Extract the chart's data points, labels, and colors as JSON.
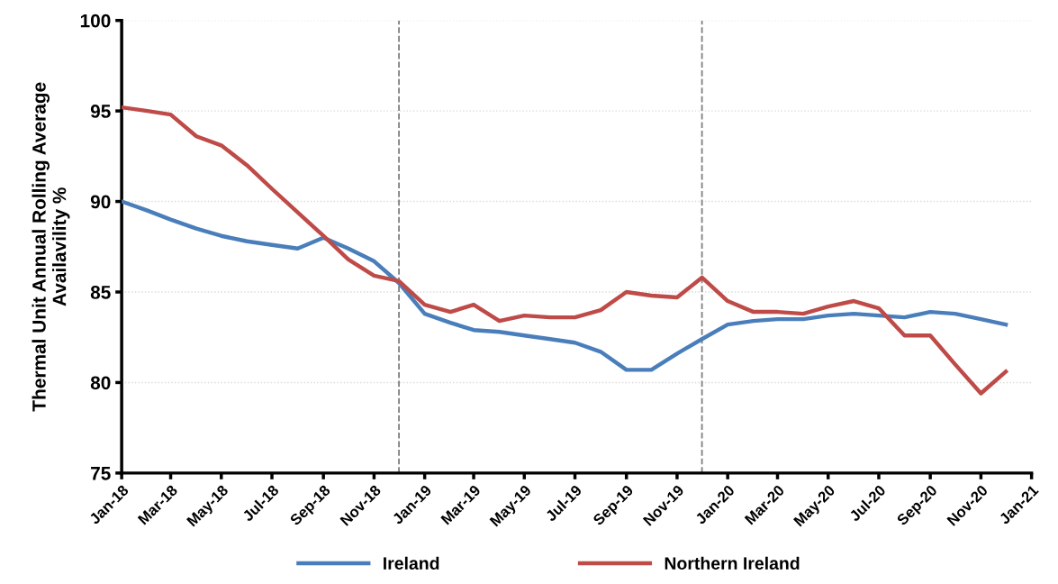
{
  "chart_data": {
    "type": "line",
    "ylabel": "Thermal Unit Annual Rolling Average\nAvailavility %",
    "x": [
      "2018-01",
      "2018-02",
      "2018-03",
      "2018-04",
      "2018-05",
      "2018-06",
      "2018-07",
      "2018-08",
      "2018-09",
      "2018-10",
      "2018-11",
      "2018-12",
      "2019-01",
      "2019-02",
      "2019-03",
      "2019-04",
      "2019-05",
      "2019-06",
      "2019-07",
      "2019-08",
      "2019-09",
      "2019-10",
      "2019-11",
      "2019-12",
      "2020-01",
      "2020-02",
      "2020-03",
      "2020-04",
      "2020-05",
      "2020-06",
      "2020-07",
      "2020-08",
      "2020-09",
      "2020-10",
      "2020-11",
      "2020-12"
    ],
    "series": [
      {
        "name": "Ireland",
        "color": "#4a7ebb",
        "values": [
          90.0,
          89.5,
          89.0,
          88.5,
          88.1,
          87.8,
          87.6,
          87.4,
          88.0,
          87.4,
          86.7,
          85.5,
          83.8,
          83.3,
          82.9,
          82.8,
          82.6,
          82.4,
          82.2,
          81.7,
          80.7,
          80.7,
          81.6,
          82.4,
          83.2,
          83.4,
          83.5,
          83.5,
          83.7,
          83.8,
          83.7,
          83.6,
          83.9,
          83.8,
          83.5,
          83.2
        ]
      },
      {
        "name": "Northern Ireland",
        "color": "#be4b48",
        "values": [
          95.2,
          95.0,
          94.8,
          93.6,
          93.1,
          92.0,
          90.7,
          89.4,
          88.1,
          86.8,
          85.9,
          85.6,
          84.3,
          83.9,
          84.3,
          83.4,
          83.7,
          83.6,
          83.6,
          84.0,
          85.0,
          84.8,
          84.7,
          85.8,
          84.5,
          83.9,
          83.9,
          83.8,
          84.2,
          84.5,
          84.1,
          82.6,
          82.6,
          81.0,
          79.4,
          80.6
        ]
      }
    ],
    "xlim": [
      "2018-01-01",
      "2021-01-01"
    ],
    "xticks": [
      {
        "value": "2018-01",
        "label": "Jan-18"
      },
      {
        "value": "2018-03",
        "label": "Mar-18"
      },
      {
        "value": "2018-05",
        "label": "May-18"
      },
      {
        "value": "2018-07",
        "label": "Jul-18"
      },
      {
        "value": "2018-09",
        "label": "Sep-18"
      },
      {
        "value": "2018-11",
        "label": "Nov-18"
      },
      {
        "value": "2019-01",
        "label": "Jan-19"
      },
      {
        "value": "2019-03",
        "label": "Mar-19"
      },
      {
        "value": "2019-05",
        "label": "May-19"
      },
      {
        "value": "2019-07",
        "label": "Jul-19"
      },
      {
        "value": "2019-09",
        "label": "Sep-19"
      },
      {
        "value": "2019-11",
        "label": "Nov-19"
      },
      {
        "value": "2020-01",
        "label": "Jan-20"
      },
      {
        "value": "2020-03",
        "label": "Mar-20"
      },
      {
        "value": "2020-05",
        "label": "May-20"
      },
      {
        "value": "2020-07",
        "label": "Jul-20"
      },
      {
        "value": "2020-09",
        "label": "Sep-20"
      },
      {
        "value": "2020-11",
        "label": "Nov-20"
      },
      {
        "value": "2021-01",
        "label": "Jan-21"
      }
    ],
    "ylim": [
      75,
      100
    ],
    "yticks": [
      75,
      80,
      85,
      90,
      95,
      100
    ],
    "ref_lines": [
      {
        "axis": "x",
        "value": "2018-12-01",
        "color": "#808080",
        "line_style": "dashed"
      },
      {
        "axis": "x",
        "value": "2019-12-01",
        "color": "#808080",
        "line_style": "dashed"
      }
    ],
    "grid": "y",
    "legend": "bottom",
    "line_style": "solid",
    "marker": "none"
  }
}
